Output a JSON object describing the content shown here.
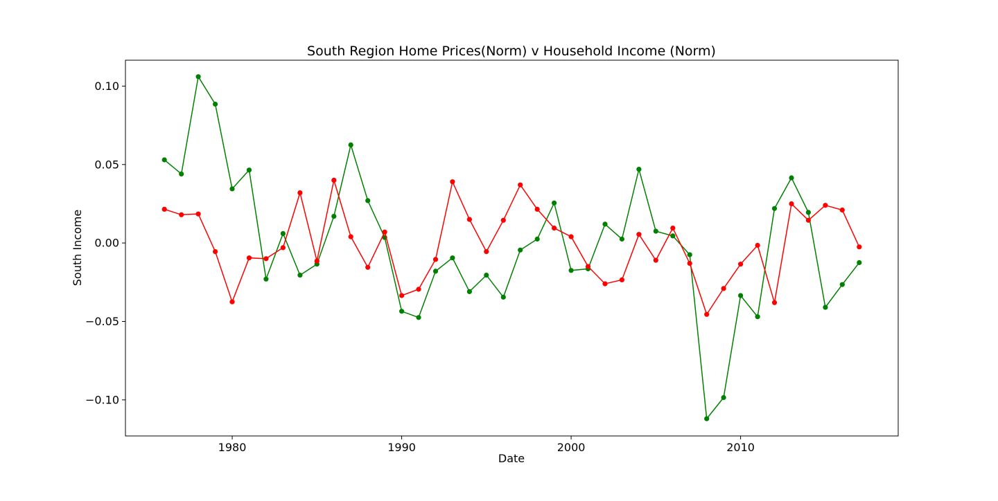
{
  "chart_data": {
    "type": "line",
    "title": "South Region Home Prices(Norm) v Household Income (Norm)",
    "xlabel": "Date",
    "ylabel": "South Income",
    "xlim": [
      1973.7,
      2019.3
    ],
    "ylim": [
      -0.123,
      0.1165
    ],
    "x_ticks": [
      1980,
      1990,
      2000,
      2010
    ],
    "x_tick_labels": [
      "1980",
      "1990",
      "2000",
      "2010"
    ],
    "y_ticks": [
      -0.1,
      -0.05,
      0.0,
      0.05,
      0.1
    ],
    "y_tick_labels": [
      "−0.10",
      "−0.05",
      "0.00",
      "0.05",
      "0.10"
    ],
    "grid": false,
    "legend": "none",
    "x": [
      1976,
      1977,
      1978,
      1979,
      1980,
      1981,
      1982,
      1983,
      1984,
      1985,
      1986,
      1987,
      1988,
      1989,
      1990,
      1991,
      1992,
      1993,
      1994,
      1995,
      1996,
      1997,
      1998,
      1999,
      2000,
      2001,
      2002,
      2003,
      2004,
      2005,
      2006,
      2007,
      2008,
      2009,
      2010,
      2011,
      2012,
      2013,
      2014,
      2015,
      2016,
      2017
    ],
    "series": [
      {
        "color": "#008000",
        "values": [
          0.053,
          0.044,
          0.106,
          0.0885,
          0.0345,
          0.0465,
          -0.023,
          0.006,
          -0.0205,
          -0.0135,
          0.017,
          0.0625,
          0.027,
          0.0035,
          -0.0435,
          -0.0475,
          -0.018,
          -0.0095,
          -0.031,
          -0.0205,
          -0.0345,
          -0.0045,
          0.0025,
          0.0255,
          -0.0175,
          -0.0165,
          0.012,
          0.0025,
          0.047,
          0.0075,
          0.0045,
          -0.0075,
          -0.112,
          -0.0985,
          -0.0335,
          -0.047,
          0.022,
          0.0415,
          0.0195,
          -0.041,
          -0.0265,
          -0.0125
        ]
      },
      {
        "color": "#ff0000",
        "values": [
          0.0215,
          0.018,
          0.0185,
          -0.0055,
          -0.0375,
          -0.0095,
          -0.01,
          -0.003,
          0.032,
          -0.0115,
          0.04,
          0.004,
          -0.0155,
          0.007,
          -0.0335,
          -0.0295,
          -0.0105,
          0.039,
          0.015,
          -0.0055,
          0.0145,
          0.037,
          0.0215,
          0.0095,
          0.004,
          -0.015,
          -0.026,
          -0.0235,
          0.0055,
          -0.011,
          0.0095,
          -0.013,
          -0.0455,
          -0.029,
          -0.0135,
          -0.0015,
          -0.038,
          0.025,
          0.0145,
          0.024,
          0.021,
          -0.0025
        ]
      }
    ]
  }
}
